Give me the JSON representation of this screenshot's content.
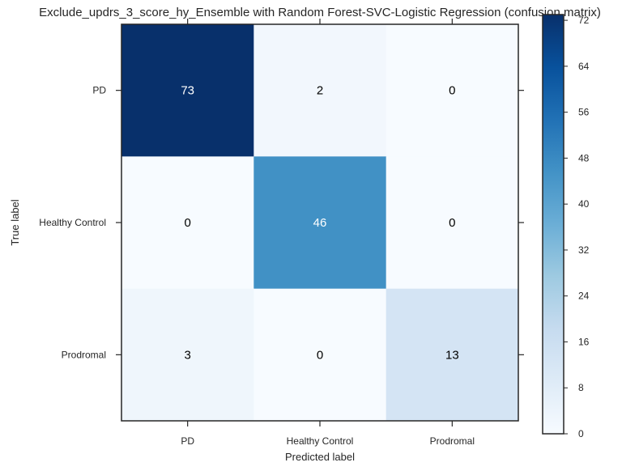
{
  "chart_data": {
    "type": "heatmap",
    "title": "Exclude_updrs_3_score_hy_Ensemble with Random Forest-SVC-Logistic Regression (confusion matrix)",
    "xlabel": "Predicted label",
    "ylabel": "True label",
    "x_categories": [
      "PD",
      "Healthy Control",
      "Prodromal"
    ],
    "y_categories": [
      "PD",
      "Healthy Control",
      "Prodromal"
    ],
    "matrix": [
      [
        73,
        2,
        0
      ],
      [
        0,
        46,
        0
      ],
      [
        3,
        0,
        13
      ]
    ],
    "colormap": "Blues",
    "colorbar": {
      "range": [
        0,
        73
      ],
      "ticks": [
        0,
        8,
        16,
        24,
        32,
        40,
        48,
        56,
        64,
        72
      ]
    },
    "grid": false,
    "colors": {
      "low": "#f7fbff",
      "high": "#08306b",
      "text_dark": "#000000",
      "text_light": "#ffffff",
      "frame": "#262626"
    }
  }
}
